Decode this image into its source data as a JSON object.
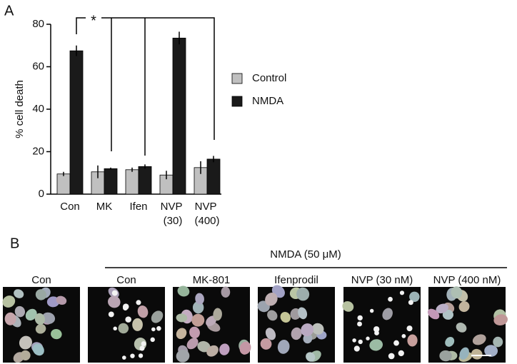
{
  "chart_data": {
    "type": "bar",
    "panel_label": "A",
    "categories": [
      "Con",
      "MK",
      "Ifen",
      "NVP (30)",
      "NVP (400)"
    ],
    "series": [
      {
        "name": "Control",
        "color": "#c0c0c0",
        "values": [
          9.5,
          10.5,
          11.5,
          9,
          12.5
        ],
        "errors": [
          1,
          3,
          1,
          2,
          3
        ]
      },
      {
        "name": "NMDA",
        "color": "#1a1a1a",
        "values": [
          67.5,
          12,
          13,
          73.5,
          16.5
        ],
        "errors": [
          2.5,
          0.5,
          1,
          3,
          1.5
        ]
      }
    ],
    "ylabel": "% cell death",
    "ylim": [
      0,
      80
    ],
    "yticks": [
      0,
      20,
      40,
      60,
      80
    ],
    "annotation": "*",
    "legend": "right"
  },
  "panel_b": {
    "label": "B",
    "header": "NMDA (50 μM)",
    "images": [
      "Con",
      "Con",
      "MK-801",
      "Ifenprodil",
      "NVP (30 nM)",
      "NVP (400 nM)"
    ]
  }
}
